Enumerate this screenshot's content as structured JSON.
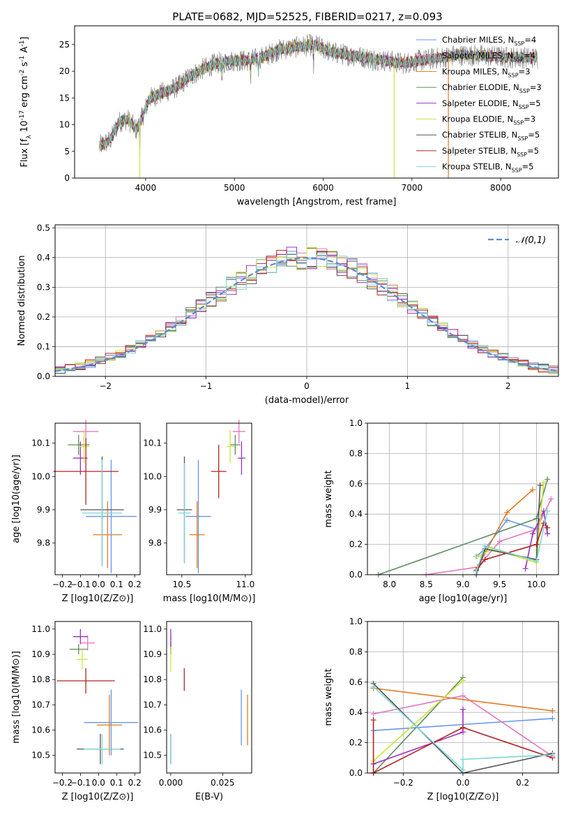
{
  "figure_title": "PLATE=0682, MJD=52525, FIBERID=0217, z=0.093",
  "colors": {
    "chabrier_miles": "#6495ED",
    "salpeter_miles": "#E377C2",
    "kroupa_miles": "#E07A1F",
    "chabrier_elodie": "#5E8C60",
    "salpeter_elodie": "#9B30C0",
    "kroupa_elodie": "#C7E83A",
    "chabrier_stelib": "#555555",
    "salpeter_stelib": "#B22222",
    "kroupa_stelib": "#7FD5D5",
    "normal": "#5B8BD5"
  },
  "chart_data": [
    {
      "type": "line",
      "xlabel": "wavelength [Angstrom, rest frame]",
      "ylabel": "Flux [f_λ 10^-17 erg cm^-2 s^-1 A^-1]",
      "xlim": [
        3200,
        8650
      ],
      "ylim": [
        0,
        28.5
      ],
      "xticks": [
        4000,
        5000,
        6000,
        7000,
        8000
      ],
      "yticks": [
        0,
        5,
        10,
        15,
        20,
        25
      ],
      "grid": false,
      "legend_position": "top-right",
      "series": [
        {
          "name": "Chabrier MILES, N_SSP=4",
          "color_key": "chabrier_miles"
        },
        {
          "name": "Salpeter MILES, N_SSP=4",
          "color_key": "salpeter_miles"
        },
        {
          "name": "Kroupa MILES, N_SSP=3",
          "color_key": "kroupa_miles"
        },
        {
          "name": "Chabrier ELODIE, N_SSP=3",
          "color_key": "chabrier_elodie"
        },
        {
          "name": "Salpeter ELODIE, N_SSP=5",
          "color_key": "salpeter_elodie"
        },
        {
          "name": "Kroupa ELODIE, N_SSP=3",
          "color_key": "kroupa_elodie"
        },
        {
          "name": "Chabrier STELIB, N_SSP=5",
          "color_key": "chabrier_stelib"
        },
        {
          "name": "Salpeter STELIB, N_SSP=5",
          "color_key": "salpeter_stelib"
        },
        {
          "name": "Kroupa STELIB, N_SSP=5",
          "color_key": "kroupa_stelib"
        }
      ],
      "continuum": [
        [
          3480,
          6
        ],
        [
          3600,
          7
        ],
        [
          3700,
          10.5
        ],
        [
          3800,
          11
        ],
        [
          3900,
          9
        ],
        [
          3950,
          11
        ],
        [
          4050,
          15
        ],
        [
          4200,
          16
        ],
        [
          4350,
          17
        ],
        [
          4500,
          19
        ],
        [
          4650,
          20.5
        ],
        [
          4800,
          21.5
        ],
        [
          5000,
          22
        ],
        [
          5150,
          22
        ],
        [
          5300,
          22.5
        ],
        [
          5500,
          24
        ],
        [
          5700,
          24.5
        ],
        [
          5900,
          25
        ],
        [
          6100,
          23.5
        ],
        [
          6300,
          23
        ],
        [
          6500,
          22.5
        ],
        [
          6700,
          22
        ],
        [
          6900,
          21.5
        ],
        [
          7100,
          22
        ],
        [
          7300,
          22.5
        ],
        [
          7500,
          23
        ],
        [
          7700,
          23
        ],
        [
          7900,
          22.8
        ],
        [
          8100,
          22.6
        ],
        [
          8400,
          22.5
        ]
      ],
      "observed_range": [
        3480,
        8420
      ],
      "model_range": [
        3480,
        8400
      ],
      "dips": [
        [
          3934,
          6.8
        ],
        [
          4862,
          5.0
        ],
        [
          5183,
          4.5
        ],
        [
          5270,
          3.0
        ],
        [
          5893,
          5.5
        ],
        [
          6563,
          3.0
        ]
      ],
      "spikes": [
        [
          3934,
          0,
          "kroupa_elodie"
        ],
        [
          6800,
          0,
          "kroupa_elodie"
        ],
        [
          7410,
          0,
          "kroupa_miles"
        ]
      ]
    },
    {
      "type": "line",
      "xlabel": "(data-model)/error",
      "ylabel": "Normed distribution",
      "xlim": [
        -2.5,
        2.5
      ],
      "ylim": [
        0,
        0.51
      ],
      "xticks": [
        -2,
        -1,
        0,
        1,
        2
      ],
      "yticks": [
        0.0,
        0.1,
        0.2,
        0.3,
        0.4,
        0.5
      ],
      "grid": true,
      "legend_position": "top-right",
      "series": [
        {
          "name": "𝒩(0,1)",
          "color_key": "normal",
          "style": "dashed"
        }
      ],
      "histogram_bins": {
        "start": -2.5,
        "width": 0.1,
        "count": 50
      }
    },
    {
      "type": "scatter",
      "xlabel": "Z [log10(Z/Z⊙)]",
      "ylabel": "age [log10(age/yr)]",
      "xlim": [
        -0.24,
        0.23
      ],
      "ylim": [
        9.705,
        10.16
      ],
      "xticks": [
        -0.2,
        -0.1,
        0.0,
        0.1,
        0.2
      ],
      "yticks": [
        9.8,
        9.9,
        10.0,
        10.1
      ],
      "grid": false,
      "points": [
        {
          "x": 0.07,
          "xerr": 0.14,
          "y": 9.88,
          "yerr": 0.17,
          "color_key": "chabrier_miles"
        },
        {
          "x": -0.07,
          "xerr": 0.07,
          "y": 10.135,
          "yerr": 0.035,
          "color_key": "salpeter_miles"
        },
        {
          "x": 0.05,
          "xerr": 0.08,
          "y": 9.825,
          "yerr": 0.1,
          "color_key": "kroupa_miles"
        },
        {
          "x": -0.11,
          "xerr": 0.06,
          "y": 10.095,
          "yerr": 0.03,
          "color_key": "chabrier_elodie"
        },
        {
          "x": -0.1,
          "xerr": 0.04,
          "y": 10.055,
          "yerr": 0.05,
          "color_key": "salpeter_elodie"
        },
        {
          "x": -0.08,
          "xerr": 0.03,
          "y": 10.09,
          "yerr": 0.05,
          "color_key": "kroupa_elodie"
        },
        {
          "x": 0.02,
          "xerr": 0.12,
          "y": 9.9,
          "yerr": 0.16,
          "color_key": "chabrier_stelib"
        },
        {
          "x": -0.07,
          "xerr": 0.18,
          "y": 10.015,
          "yerr": 0.1,
          "color_key": "salpeter_stelib"
        },
        {
          "x": 0.02,
          "xerr": 0.11,
          "y": 9.89,
          "yerr": 0.16,
          "color_key": "kroupa_stelib"
        }
      ]
    },
    {
      "type": "scatter",
      "xlabel": "mass [log10(M/M⊙)]",
      "ylabel": "",
      "xlim": [
        10.38,
        11.05
      ],
      "ylim": [
        9.705,
        10.16
      ],
      "xticks": [
        10.5,
        11.0
      ],
      "yticks": [
        9.8,
        9.9,
        10.0,
        10.1
      ],
      "grid": false,
      "points": [
        {
          "x": 10.63,
          "xerr": 0.1,
          "y": 9.88,
          "yerr": 0.17,
          "color_key": "chabrier_miles"
        },
        {
          "x": 10.95,
          "xerr": 0.05,
          "y": 10.135,
          "yerr": 0.035,
          "color_key": "salpeter_miles"
        },
        {
          "x": 10.62,
          "xerr": 0.06,
          "y": 9.825,
          "yerr": 0.1,
          "color_key": "kroupa_miles"
        },
        {
          "x": 10.92,
          "xerr": 0.04,
          "y": 10.095,
          "yerr": 0.03,
          "color_key": "chabrier_elodie"
        },
        {
          "x": 10.97,
          "xerr": 0.03,
          "y": 10.055,
          "yerr": 0.05,
          "color_key": "salpeter_elodie"
        },
        {
          "x": 10.88,
          "xerr": 0.03,
          "y": 10.09,
          "yerr": 0.05,
          "color_key": "kroupa_elodie"
        },
        {
          "x": 10.52,
          "xerr": 0.06,
          "y": 9.9,
          "yerr": 0.16,
          "color_key": "chabrier_stelib"
        },
        {
          "x": 10.79,
          "xerr": 0.06,
          "y": 10.015,
          "yerr": 0.08,
          "color_key": "salpeter_stelib"
        },
        {
          "x": 10.52,
          "xerr": 0.05,
          "y": 9.89,
          "yerr": 0.15,
          "color_key": "kroupa_stelib"
        }
      ]
    },
    {
      "type": "line",
      "xlabel": "age [log10(age/yr)]",
      "ylabel": "mass weight",
      "xlim": [
        7.7,
        10.3
      ],
      "ylim": [
        0,
        1.0
      ],
      "xticks": [
        8.0,
        8.5,
        9.0,
        9.5,
        10.0
      ],
      "yticks": [
        0.0,
        0.2,
        0.4,
        0.6,
        0.8,
        1.0
      ],
      "grid": true,
      "series": [
        {
          "color_key": "chabrier_miles",
          "points": [
            [
              9.18,
              0.12
            ],
            [
              9.3,
              0.17
            ],
            [
              9.6,
              0.36
            ],
            [
              10.0,
              0.3
            ]
          ]
        },
        {
          "color_key": "salpeter_miles",
          "points": [
            [
              8.5,
              0.0
            ],
            [
              9.2,
              0.05
            ],
            [
              9.5,
              0.22
            ],
            [
              10.0,
              0.3
            ],
            [
              10.2,
              0.5
            ]
          ]
        },
        {
          "color_key": "kroupa_miles",
          "points": [
            [
              9.2,
              0.05
            ],
            [
              9.6,
              0.41
            ],
            [
              9.95,
              0.56
            ]
          ]
        },
        {
          "color_key": "chabrier_elodie",
          "points": [
            [
              7.85,
              0.0
            ],
            [
              10.0,
              0.37
            ],
            [
              10.15,
              0.63
            ]
          ]
        },
        {
          "color_key": "salpeter_elodie",
          "points": [
            [
              9.85,
              0.04
            ],
            [
              9.95,
              0.27
            ],
            [
              10.1,
              0.42
            ],
            [
              10.15,
              0.27
            ]
          ]
        },
        {
          "color_key": "kroupa_elodie",
          "points": [
            [
              9.2,
              0.12
            ],
            [
              9.4,
              0.17
            ],
            [
              10.0,
              0.08
            ],
            [
              10.1,
              0.61
            ]
          ]
        },
        {
          "color_key": "chabrier_stelib",
          "points": [
            [
              9.18,
              0.0
            ],
            [
              9.3,
              0.17
            ],
            [
              10.0,
              0.1
            ],
            [
              10.05,
              0.59
            ]
          ]
        },
        {
          "color_key": "salpeter_stelib",
          "points": [
            [
              9.18,
              0.03
            ],
            [
              9.3,
              0.1
            ],
            [
              10.0,
              0.2
            ],
            [
              10.1,
              0.34
            ],
            [
              10.15,
              0.31
            ]
          ]
        },
        {
          "color_key": "kroupa_stelib",
          "points": [
            [
              9.18,
              0.02
            ],
            [
              9.3,
              0.19
            ],
            [
              10.0,
              0.09
            ],
            [
              10.15,
              0.42
            ]
          ]
        }
      ]
    },
    {
      "type": "scatter",
      "xlabel": "Z [log10(Z/Z⊙)]",
      "ylabel": "mass [log10(M/M⊙)]",
      "xlim": [
        -0.24,
        0.23
      ],
      "ylim": [
        10.43,
        11.03
      ],
      "xticks": [
        -0.2,
        -0.1,
        0.0,
        0.1,
        0.2
      ],
      "yticks": [
        10.5,
        10.6,
        10.7,
        10.8,
        10.9,
        11.0
      ],
      "grid": false,
      "points": [
        {
          "x": 0.07,
          "xerr": 0.15,
          "y": 10.63,
          "yerr": 0.13,
          "color_key": "chabrier_miles"
        },
        {
          "x": -0.06,
          "xerr": 0.04,
          "y": 10.945,
          "yerr": 0.03,
          "color_key": "salpeter_miles"
        },
        {
          "x": 0.06,
          "xerr": 0.07,
          "y": 10.62,
          "yerr": 0.12,
          "color_key": "kroupa_miles"
        },
        {
          "x": -0.11,
          "xerr": 0.05,
          "y": 10.92,
          "yerr": 0.02,
          "color_key": "chabrier_elodie"
        },
        {
          "x": -0.1,
          "xerr": 0.04,
          "y": 10.97,
          "yerr": 0.03,
          "color_key": "salpeter_elodie"
        },
        {
          "x": -0.09,
          "xerr": 0.03,
          "y": 10.88,
          "yerr": 0.04,
          "color_key": "kroupa_elodie"
        },
        {
          "x": 0.01,
          "xerr": 0.13,
          "y": 10.525,
          "yerr": 0.06,
          "color_key": "chabrier_stelib"
        },
        {
          "x": -0.07,
          "xerr": 0.16,
          "y": 10.795,
          "yerr": 0.05,
          "color_key": "salpeter_stelib"
        },
        {
          "x": 0.02,
          "xerr": 0.1,
          "y": 10.525,
          "yerr": 0.06,
          "color_key": "kroupa_stelib"
        }
      ]
    },
    {
      "type": "scatter",
      "xlabel": "E(B-V)",
      "ylabel": "",
      "xlim": [
        -0.002,
        0.039
      ],
      "ylim": [
        10.43,
        11.03
      ],
      "xticks": [
        0.0,
        0.025
      ],
      "yticks": [
        10.5,
        10.6,
        10.7,
        10.8,
        10.9,
        11.0
      ],
      "grid": false,
      "points": [
        {
          "x": 0.034,
          "y": 10.65,
          "yerr": 0.11,
          "color_key": "chabrier_miles"
        },
        {
          "x": 0.0,
          "y": 10.945,
          "yerr": 0.03,
          "color_key": "salpeter_miles"
        },
        {
          "x": 0.037,
          "y": 10.64,
          "yerr": 0.1,
          "color_key": "kroupa_miles"
        },
        {
          "x": 0.0,
          "y": 10.92,
          "yerr": 0.02,
          "color_key": "chabrier_elodie"
        },
        {
          "x": 0.0,
          "y": 10.95,
          "yerr": 0.05,
          "color_key": "salpeter_elodie"
        },
        {
          "x": 0.0,
          "y": 10.88,
          "yerr": 0.05,
          "color_key": "kroupa_elodie"
        },
        {
          "x": 0.0,
          "y": 10.525,
          "yerr": 0.06,
          "color_key": "chabrier_stelib"
        },
        {
          "x": 0.0065,
          "y": 10.8,
          "yerr": 0.045,
          "color_key": "salpeter_stelib"
        },
        {
          "x": 0.0,
          "y": 10.525,
          "yerr": 0.06,
          "color_key": "kroupa_stelib"
        }
      ]
    },
    {
      "type": "line",
      "xlabel": "Z [log10(Z/Z⊙)]",
      "ylabel": "mass weight",
      "xlim": [
        -0.32,
        0.32
      ],
      "ylim": [
        0,
        1.0
      ],
      "xticks": [
        -0.2,
        0.0,
        0.2
      ],
      "yticks": [
        0.0,
        0.2,
        0.4,
        0.6,
        0.8,
        1.0
      ],
      "grid": true,
      "series": [
        {
          "color_key": "chabrier_miles",
          "points": [
            [
              -0.3,
              0.28
            ],
            [
              0.3,
              0.36
            ]
          ]
        },
        {
          "color_key": "salpeter_miles",
          "points": [
            [
              -0.3,
              0.39
            ],
            [
              0.0,
              0.51
            ],
            [
              0.3,
              0.11
            ]
          ]
        },
        {
          "color_key": "kroupa_miles",
          "points": [
            [
              -0.3,
              0.56
            ],
            [
              0.3,
              0.41
            ]
          ]
        },
        {
          "color_key": "chabrier_elodie",
          "points": [
            [
              -0.3,
              0.0
            ],
            [
              0.0,
              0.63
            ]
          ]
        },
        {
          "color_key": "salpeter_elodie",
          "points": [
            [
              -0.3,
              0.06
            ],
            [
              0.0,
              0.27
            ],
            [
              0.0,
              0.42
            ]
          ]
        },
        {
          "color_key": "kroupa_elodie",
          "points": [
            [
              -0.3,
              0.08
            ],
            [
              0.0,
              0.61
            ]
          ]
        },
        {
          "color_key": "chabrier_stelib",
          "points": [
            [
              -0.3,
              0.59
            ],
            [
              0.0,
              0.0
            ],
            [
              0.3,
              0.13
            ]
          ]
        },
        {
          "color_key": "salpeter_stelib",
          "points": [
            [
              -0.3,
              0.35
            ],
            [
              -0.3,
              0.0
            ],
            [
              0.0,
              0.3
            ],
            [
              0.3,
              0.1
            ]
          ]
        },
        {
          "color_key": "kroupa_stelib",
          "points": [
            [
              -0.3,
              0.57
            ],
            [
              0.0,
              0.02
            ],
            [
              0.0,
              0.09
            ],
            [
              0.3,
              0.12
            ]
          ]
        }
      ]
    }
  ]
}
